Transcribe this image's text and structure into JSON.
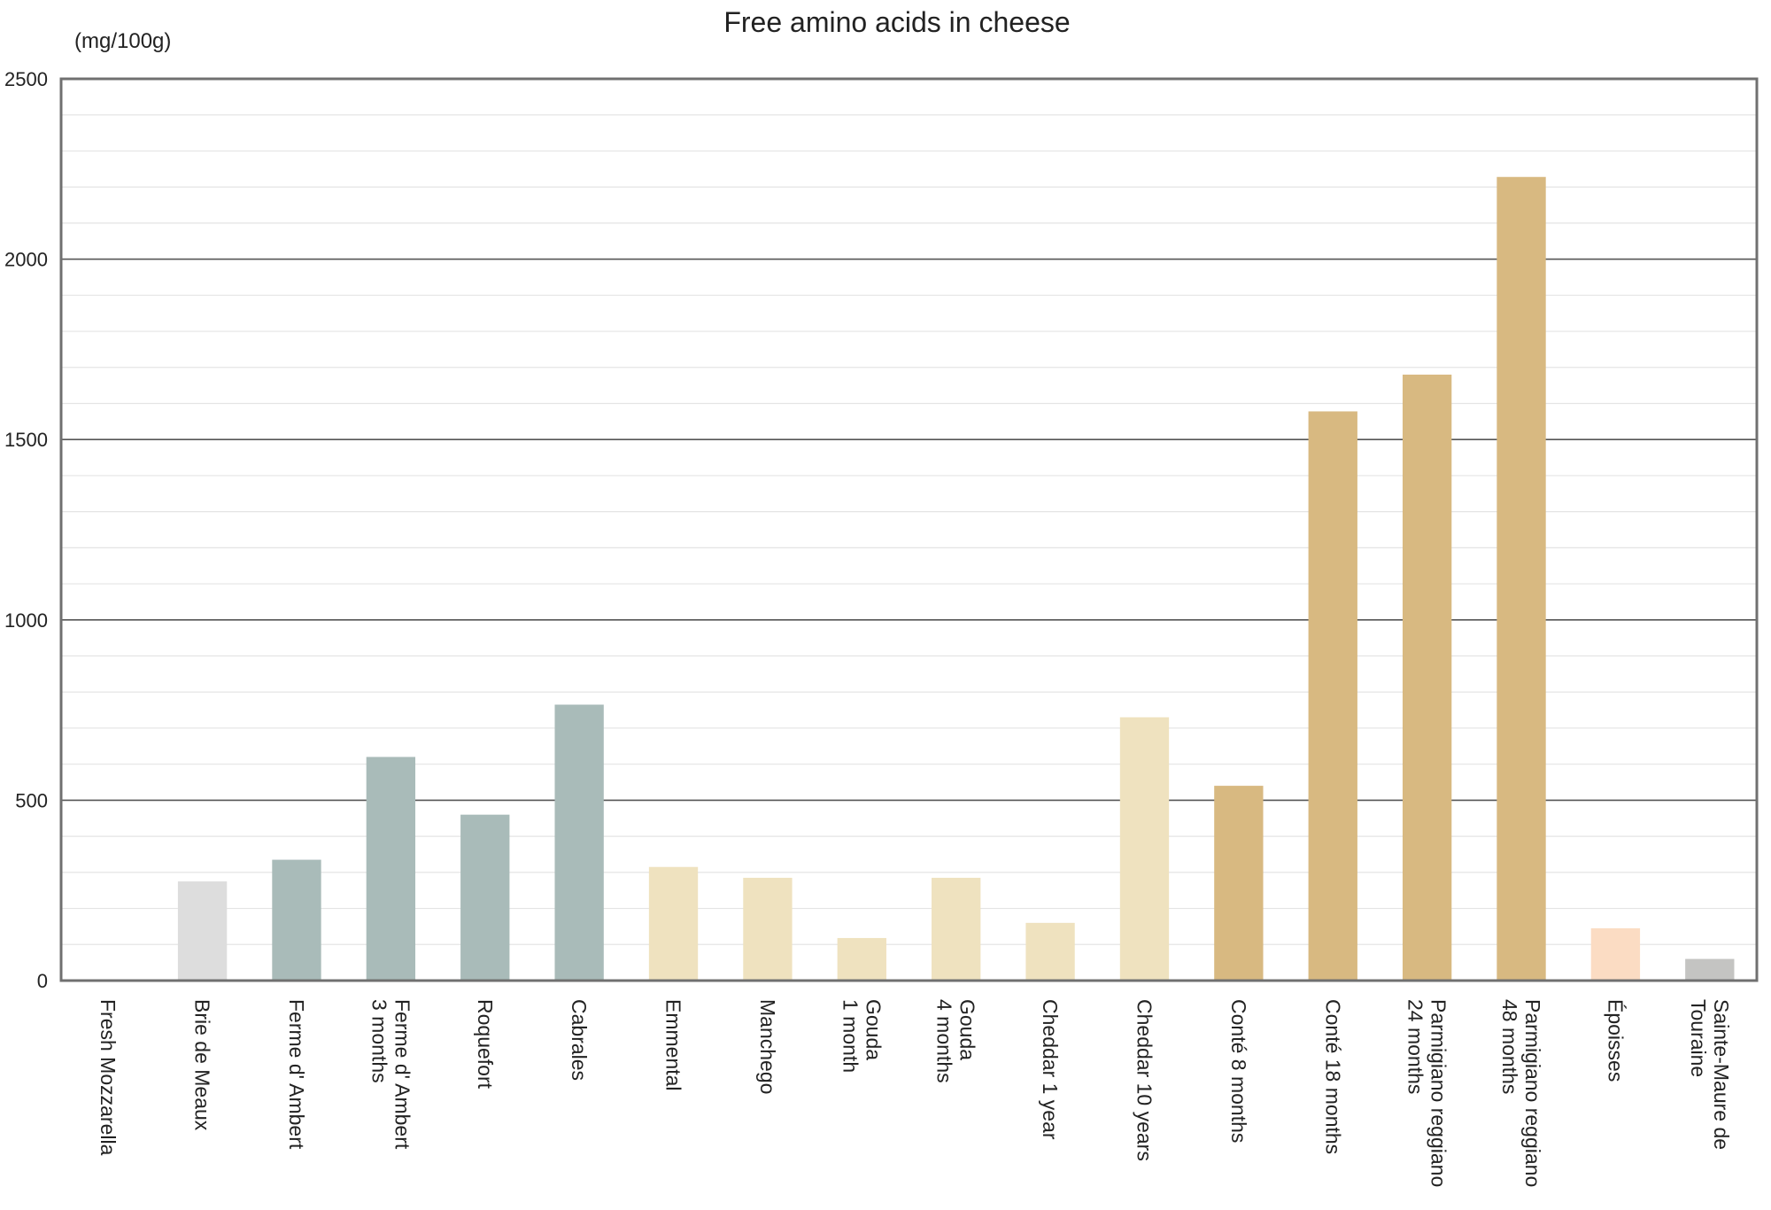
{
  "chart_data": {
    "type": "bar",
    "title": "Free amino acids in cheese",
    "unit_label": "(mg/100g)",
    "xlabel": "",
    "ylabel": "",
    "ylim": [
      0,
      2500
    ],
    "y_ticks": [
      "0",
      "500",
      "1000",
      "1500",
      "2000",
      "2500"
    ],
    "grid": true,
    "legend": "none",
    "categories": [
      [
        "Fresh Mozzarella"
      ],
      [
        "Brie de Meaux"
      ],
      [
        "Ferme d' Ambert"
      ],
      [
        "Ferme d' Ambert",
        "3 months"
      ],
      [
        "Roquefort"
      ],
      [
        "Cabrales"
      ],
      [
        "Emmental"
      ],
      [
        "Manchego"
      ],
      [
        "Gouda",
        "1 month"
      ],
      [
        "Gouda",
        "4 months"
      ],
      [
        "Cheddar 1 year"
      ],
      [
        "Cheddar 10 years"
      ],
      [
        "Conté 8 months"
      ],
      [
        "Conté 18 months"
      ],
      [
        "Parmigiano reggiano",
        "24 months"
      ],
      [
        "Parmigiano reggiano",
        "48 months"
      ],
      [
        "Époisses"
      ],
      [
        "Sainte-Maure de",
        "Touraine"
      ]
    ],
    "values": [
      0,
      275,
      335,
      620,
      460,
      765,
      315,
      285,
      118,
      285,
      160,
      730,
      540,
      1578,
      1680,
      2228,
      145,
      60
    ],
    "bar_colors": [
      "#dddddd",
      "#dddddd",
      "#a9bbb9",
      "#a9bbb9",
      "#a9bbb9",
      "#a9bbb9",
      "#efe2bf",
      "#efe2bf",
      "#efe2bf",
      "#efe2bf",
      "#efe2bf",
      "#efe2bf",
      "#d8b981",
      "#d8b981",
      "#d8b981",
      "#d8b981",
      "#fbdcc3",
      "#c4c4c2"
    ]
  }
}
